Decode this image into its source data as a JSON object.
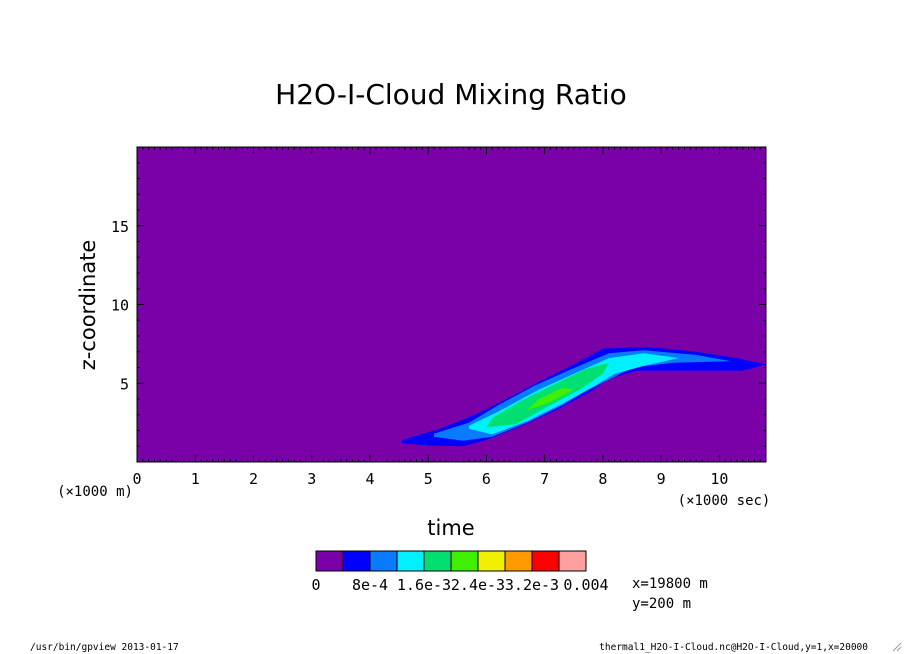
{
  "chart_data": {
    "type": "heatmap",
    "title": "H2O-I-Cloud Mixing Ratio",
    "xlabel": "time",
    "ylabel": "z-coordinate",
    "x_unit": "(×1000 sec)",
    "y_unit": "(×1000 m)",
    "xlim": [
      0,
      10.8
    ],
    "ylim": [
      0,
      20
    ],
    "x_ticks": [
      "0",
      "1",
      "2",
      "3",
      "4",
      "5",
      "6",
      "7",
      "8",
      "9",
      "10"
    ],
    "y_ticks": [
      "5",
      "10",
      "15"
    ],
    "background_level_color": "#7a00a8",
    "levels": [
      0,
      0.0004,
      0.0008,
      0.0012,
      0.0016,
      0.002,
      0.0024,
      0.0028,
      0.0032,
      0.0036,
      0.004
    ],
    "colors": [
      "#7a00a8",
      "#0000ff",
      "#0a7aff",
      "#00f0ff",
      "#00e070",
      "#40f000",
      "#f0f000",
      "#ff9a00",
      "#ff0000",
      "#ffa0a0"
    ],
    "colorbar_labels": [
      "0",
      "8e-4",
      "1.6e-3",
      "2.4e-3",
      "3.2e-3",
      "0.004"
    ],
    "contours": [
      {
        "level_index": 1,
        "points": [
          [
            4.55,
            1.2
          ],
          [
            5.0,
            1.05
          ],
          [
            5.6,
            1.0
          ],
          [
            6.0,
            1.4
          ],
          [
            6.6,
            2.3
          ],
          [
            7.2,
            3.3
          ],
          [
            7.8,
            4.5
          ],
          [
            8.1,
            5.3
          ],
          [
            8.6,
            5.8
          ],
          [
            9.3,
            5.8
          ],
          [
            10.4,
            5.8
          ],
          [
            10.8,
            6.2
          ],
          [
            10.3,
            6.6
          ],
          [
            9.6,
            7.0
          ],
          [
            8.8,
            7.3
          ],
          [
            8.0,
            7.2
          ],
          [
            7.5,
            6.2
          ],
          [
            6.9,
            5.1
          ],
          [
            6.4,
            4.1
          ],
          [
            5.8,
            3.0
          ],
          [
            5.2,
            2.1
          ],
          [
            4.55,
            1.4
          ]
        ]
      },
      {
        "level_index": 2,
        "points": [
          [
            5.1,
            1.6
          ],
          [
            5.6,
            1.35
          ],
          [
            6.1,
            1.6
          ],
          [
            6.7,
            2.5
          ],
          [
            7.3,
            3.6
          ],
          [
            7.7,
            4.5
          ],
          [
            8.2,
            5.4
          ],
          [
            8.5,
            6.0
          ],
          [
            9.2,
            6.3
          ],
          [
            10.2,
            6.4
          ],
          [
            9.6,
            6.8
          ],
          [
            8.7,
            7.1
          ],
          [
            8.1,
            6.9
          ],
          [
            7.4,
            5.8
          ],
          [
            6.8,
            4.8
          ],
          [
            6.2,
            3.6
          ],
          [
            5.7,
            2.5
          ],
          [
            5.1,
            1.8
          ]
        ]
      },
      {
        "level_index": 3,
        "points": [
          [
            5.7,
            2.1
          ],
          [
            6.1,
            1.75
          ],
          [
            6.7,
            2.6
          ],
          [
            7.3,
            3.7
          ],
          [
            7.8,
            4.7
          ],
          [
            8.2,
            5.6
          ],
          [
            8.7,
            6.1
          ],
          [
            9.3,
            6.6
          ],
          [
            8.7,
            6.9
          ],
          [
            8.1,
            6.6
          ],
          [
            7.5,
            5.6
          ],
          [
            6.9,
            4.6
          ],
          [
            6.2,
            3.2
          ],
          [
            5.7,
            2.3
          ]
        ]
      },
      {
        "level_index": 4,
        "points": [
          [
            6.0,
            2.2
          ],
          [
            6.5,
            2.4
          ],
          [
            7.1,
            3.6
          ],
          [
            7.6,
            4.6
          ],
          [
            8.0,
            5.6
          ],
          [
            8.1,
            6.3
          ],
          [
            7.7,
            5.9
          ],
          [
            7.2,
            5.0
          ],
          [
            6.6,
            3.9
          ],
          [
            6.1,
            2.8
          ]
        ]
      },
      {
        "level_index": 5,
        "points": [
          [
            6.7,
            3.3
          ],
          [
            7.1,
            3.8
          ],
          [
            7.5,
            4.6
          ],
          [
            7.3,
            4.7
          ],
          [
            6.9,
            4.0
          ]
        ]
      }
    ],
    "footnote_x": "x=19800 m",
    "footnote_y": "y=200 m",
    "footer_left": "/usr/bin/gpview  2013-01-17",
    "footer_right": "thermal1_H2O-I-Cloud.nc@H2O-I-Cloud,y=1,x=20000"
  }
}
